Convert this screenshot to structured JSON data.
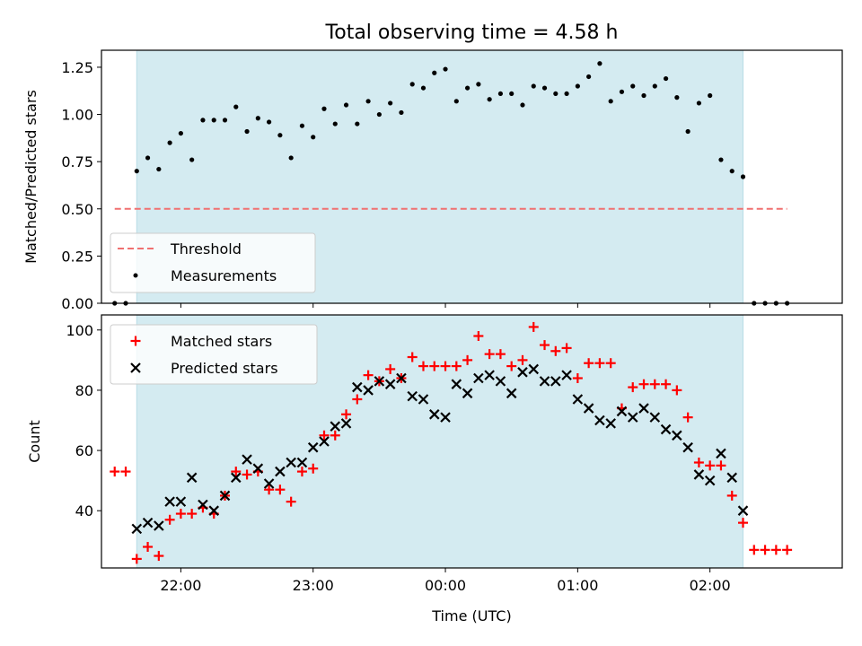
{
  "colors": {
    "observing_window": "#d4ebf1",
    "threshold": "#f07070",
    "measurements": "#000000",
    "matched": "#ff0000",
    "predicted": "#000000"
  },
  "chart_data": [
    {
      "type": "scatter",
      "title": "Total observing time = 4.58 h",
      "ylabel": "Matched/Predicted stars",
      "xlabel": "",
      "xlim": [
        "21:24",
        "03:00"
      ],
      "ylim": [
        0,
        1.34
      ],
      "yticks": [
        "0.00",
        "0.25",
        "0.50",
        "0.75",
        "1.00",
        "1.25"
      ],
      "ytick_values": [
        0,
        0.25,
        0.5,
        0.75,
        1.0,
        1.25
      ],
      "observing_window": [
        "21:40",
        "02:15"
      ],
      "threshold": {
        "name": "Threshold",
        "y": 0.5,
        "x_range": [
          "21:30",
          "02:35"
        ]
      },
      "legend": {
        "placement": "lower-left",
        "entries": [
          "Threshold",
          "Measurements"
        ]
      },
      "series": [
        {
          "name": "Measurements",
          "x": [
            "21:30",
            "21:35",
            "21:40",
            "21:45",
            "21:50",
            "21:55",
            "22:00",
            "22:05",
            "22:10",
            "22:15",
            "22:20",
            "22:25",
            "22:30",
            "22:35",
            "22:40",
            "22:45",
            "22:50",
            "22:55",
            "23:00",
            "23:05",
            "23:10",
            "23:15",
            "23:20",
            "23:25",
            "23:30",
            "23:35",
            "23:40",
            "23:45",
            "23:50",
            "23:55",
            "00:00",
            "00:05",
            "00:10",
            "00:15",
            "00:20",
            "00:25",
            "00:30",
            "00:35",
            "00:40",
            "00:45",
            "00:50",
            "00:55",
            "01:00",
            "01:05",
            "01:10",
            "01:15",
            "01:20",
            "01:25",
            "01:30",
            "01:35",
            "01:40",
            "01:45",
            "01:50",
            "01:55",
            "02:00",
            "02:05",
            "02:10",
            "02:15",
            "02:20",
            "02:25",
            "02:30",
            "02:35"
          ],
          "y": [
            0.0,
            0.0,
            0.7,
            0.77,
            0.71,
            0.85,
            0.9,
            0.76,
            0.97,
            0.97,
            0.97,
            1.04,
            0.91,
            0.98,
            0.96,
            0.89,
            0.77,
            0.94,
            0.88,
            1.03,
            0.95,
            1.05,
            0.95,
            1.07,
            1.0,
            1.06,
            1.01,
            1.16,
            1.14,
            1.22,
            1.24,
            1.07,
            1.14,
            1.16,
            1.08,
            1.11,
            1.11,
            1.05,
            1.15,
            1.14,
            1.11,
            1.11,
            1.15,
            1.2,
            1.27,
            1.07,
            1.12,
            1.15,
            1.1,
            1.15,
            1.19,
            1.09,
            0.91,
            1.06,
            1.1,
            0.76,
            0.7,
            0.67,
            0.0,
            0.0,
            0.0,
            0.0
          ]
        }
      ]
    },
    {
      "type": "scatter",
      "title": "",
      "ylabel": "Count",
      "xlabel": "Time (UTC)",
      "xlim": [
        "21:24",
        "03:00"
      ],
      "ylim": [
        21,
        105
      ],
      "yticks": [
        "40",
        "60",
        "80",
        "100"
      ],
      "ytick_values": [
        40,
        60,
        80,
        100
      ],
      "xticks": [
        "22:00",
        "23:00",
        "00:00",
        "01:00",
        "02:00"
      ],
      "observing_window": [
        "21:40",
        "02:15"
      ],
      "legend": {
        "placement": "upper-left",
        "entries": [
          "Matched stars",
          "Predicted stars"
        ]
      },
      "series": [
        {
          "name": "Matched stars",
          "x": [
            "21:30",
            "21:35",
            "21:40",
            "21:45",
            "21:50",
            "21:55",
            "22:00",
            "22:05",
            "22:10",
            "22:15",
            "22:20",
            "22:25",
            "22:30",
            "22:35",
            "22:40",
            "22:45",
            "22:50",
            "22:55",
            "23:00",
            "23:05",
            "23:10",
            "23:15",
            "23:20",
            "23:25",
            "23:30",
            "23:35",
            "23:40",
            "23:45",
            "23:50",
            "23:55",
            "00:00",
            "00:05",
            "00:10",
            "00:15",
            "00:20",
            "00:25",
            "00:30",
            "00:35",
            "00:40",
            "00:45",
            "00:50",
            "00:55",
            "01:00",
            "01:05",
            "01:10",
            "01:15",
            "01:20",
            "01:25",
            "01:30",
            "01:35",
            "01:40",
            "01:45",
            "01:50",
            "01:55",
            "02:00",
            "02:05",
            "02:10",
            "02:15",
            "02:20",
            "02:25",
            "02:30",
            "02:35"
          ],
          "y": [
            53,
            53,
            24,
            28,
            25,
            37,
            39,
            39,
            41,
            39,
            45,
            53,
            52,
            53,
            47,
            47,
            43,
            53,
            54,
            65,
            65,
            72,
            77,
            85,
            83,
            87,
            84,
            91,
            88,
            88,
            88,
            88,
            90,
            98,
            92,
            92,
            88,
            90,
            101,
            95,
            93,
            94,
            84,
            89,
            89,
            89,
            74,
            81,
            82,
            82,
            82,
            80,
            71,
            56,
            55,
            55,
            45,
            36,
            27,
            27,
            27,
            27
          ]
        },
        {
          "name": "Predicted stars",
          "x": [
            "21:40",
            "21:45",
            "21:50",
            "21:55",
            "22:00",
            "22:05",
            "22:10",
            "22:15",
            "22:20",
            "22:25",
            "22:30",
            "22:35",
            "22:40",
            "22:45",
            "22:50",
            "22:55",
            "23:00",
            "23:05",
            "23:10",
            "23:15",
            "23:20",
            "23:25",
            "23:30",
            "23:35",
            "23:40",
            "23:45",
            "23:50",
            "23:55",
            "00:00",
            "00:05",
            "00:10",
            "00:15",
            "00:20",
            "00:25",
            "00:30",
            "00:35",
            "00:40",
            "00:45",
            "00:50",
            "00:55",
            "01:00",
            "01:05",
            "01:10",
            "01:15",
            "01:20",
            "01:25",
            "01:30",
            "01:35",
            "01:40",
            "01:45",
            "01:50",
            "01:55",
            "02:00",
            "02:05",
            "02:10",
            "02:15"
          ],
          "y": [
            34,
            36,
            35,
            43,
            43,
            51,
            42,
            40,
            45,
            51,
            57,
            54,
            49,
            53,
            56,
            56,
            61,
            63,
            68,
            69,
            81,
            80,
            83,
            82,
            84,
            78,
            77,
            72,
            71,
            82,
            79,
            84,
            85,
            83,
            79,
            86,
            87,
            83,
            83,
            85,
            77,
            74,
            70,
            69,
            73,
            71,
            74,
            71,
            67,
            65,
            61,
            52,
            50,
            59,
            51,
            40
          ]
        }
      ]
    }
  ]
}
